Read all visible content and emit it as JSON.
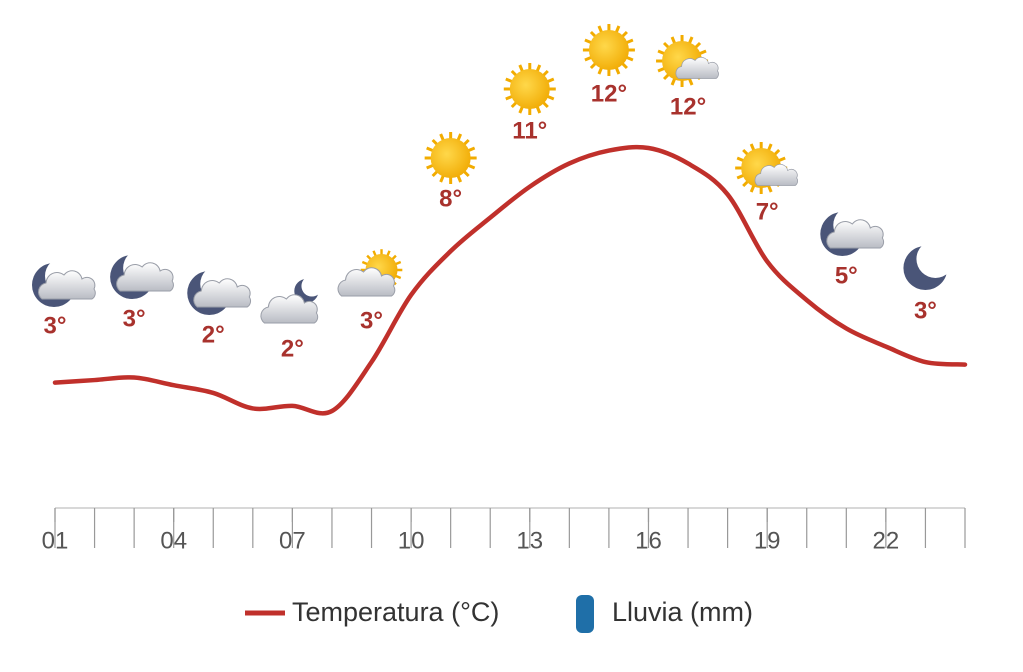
{
  "chart_data": {
    "type": "line",
    "x": [
      1,
      2,
      3,
      4,
      5,
      6,
      7,
      8,
      9,
      10,
      11,
      12,
      13,
      14,
      15,
      16,
      17,
      18,
      19,
      20,
      21,
      22,
      23,
      24
    ],
    "xlim": [
      1,
      24
    ],
    "xticks": [
      {
        "value": 1,
        "label": "01"
      },
      {
        "value": 4,
        "label": "04"
      },
      {
        "value": 7,
        "label": "07"
      },
      {
        "value": 10,
        "label": "10"
      },
      {
        "value": 13,
        "label": "13"
      },
      {
        "value": 16,
        "label": "16"
      },
      {
        "value": 19,
        "label": "19"
      },
      {
        "value": 22,
        "label": "22"
      }
    ],
    "minor_xticks": [
      1,
      2,
      3,
      4,
      5,
      6,
      7,
      8,
      9,
      10,
      11,
      12,
      13,
      14,
      15,
      16,
      17,
      18,
      19,
      20,
      21,
      22,
      23,
      24
    ],
    "series": [
      {
        "name": "Temperatura (°C)",
        "color": "#c0302b",
        "values": [
          3.0,
          3.1,
          3.2,
          2.9,
          2.6,
          2.0,
          2.1,
          1.9,
          3.8,
          6.4,
          8.1,
          9.4,
          10.6,
          11.5,
          12.0,
          12.1,
          11.5,
          10.3,
          7.7,
          6.2,
          5.1,
          4.4,
          3.8,
          3.7
        ]
      },
      {
        "name": "Lluvia (mm)",
        "color": "#1f6fa8",
        "values": [
          0,
          0,
          0,
          0,
          0,
          0,
          0,
          0,
          0,
          0,
          0,
          0,
          0,
          0,
          0,
          0,
          0,
          0,
          0,
          0,
          0,
          0,
          0,
          0
        ]
      }
    ],
    "forecast": {
      "x": [
        1,
        3,
        5,
        7,
        9,
        11,
        13,
        15,
        17,
        19,
        21,
        23
      ],
      "values": [
        3,
        3,
        2,
        2,
        3,
        8,
        11,
        12,
        12,
        7,
        5,
        3
      ],
      "value_labels": [
        "3°",
        "3°",
        "2°",
        "2°",
        "3°",
        "8°",
        "11°",
        "12°",
        "12°",
        "7°",
        "5°",
        "3°"
      ]
    }
  }
}
